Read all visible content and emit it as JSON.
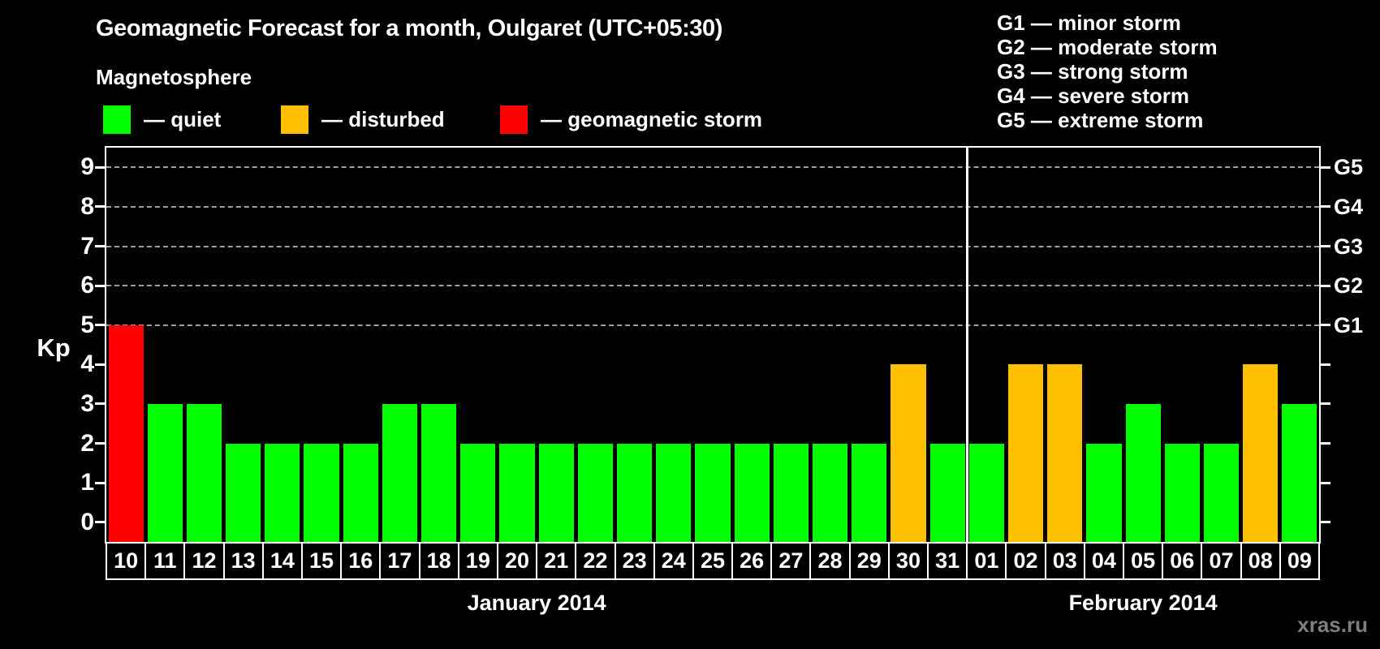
{
  "title": "Geomagnetic Forecast for a month, Oulgaret (UTC+05:30)",
  "magnetosphere_legend": {
    "title": "Magnetosphere",
    "items": [
      {
        "status": "quiet",
        "label": "— quiet"
      },
      {
        "status": "disturbed",
        "label": "— disturbed"
      },
      {
        "status": "storm",
        "label": "— geomagnetic storm"
      }
    ]
  },
  "storm_scale_legend": [
    "G1 — minor storm",
    "G2 — moderate storm",
    "G3 — strong storm",
    "G4 — severe storm",
    "G5 — extreme storm"
  ],
  "watermark": "xras.ru",
  "colors": {
    "quiet": "#00ff00",
    "disturbed": "#ffc000",
    "storm": "#ff0000",
    "background": "#000000",
    "axis": "#ffffff",
    "grid": "#a0a0a0",
    "watermark": "#7f7f7f"
  },
  "chart_data": {
    "type": "bar",
    "title": "Geomagnetic Forecast for a month, Oulgaret (UTC+05:30)",
    "xlabel": "",
    "ylabel": "Kp",
    "ylim": [
      -0.5,
      9.5
    ],
    "yticks": [
      0,
      1,
      2,
      3,
      4,
      5,
      6,
      7,
      8,
      9
    ],
    "gridlines_at": [
      5,
      6,
      7,
      8,
      9
    ],
    "grid": "dashed-horizontal",
    "legend_position": "top-left",
    "right_axis": {
      "labels": [
        "G1",
        "G2",
        "G3",
        "G4",
        "G5"
      ],
      "values": [
        5,
        6,
        7,
        8,
        9
      ]
    },
    "months": [
      {
        "label": "January 2014",
        "days": [
          {
            "day": "10",
            "kp": 5,
            "status": "storm"
          },
          {
            "day": "11",
            "kp": 3,
            "status": "quiet"
          },
          {
            "day": "12",
            "kp": 3,
            "status": "quiet"
          },
          {
            "day": "13",
            "kp": 2,
            "status": "quiet"
          },
          {
            "day": "14",
            "kp": 2,
            "status": "quiet"
          },
          {
            "day": "15",
            "kp": 2,
            "status": "quiet"
          },
          {
            "day": "16",
            "kp": 2,
            "status": "quiet"
          },
          {
            "day": "17",
            "kp": 3,
            "status": "quiet"
          },
          {
            "day": "18",
            "kp": 3,
            "status": "quiet"
          },
          {
            "day": "19",
            "kp": 2,
            "status": "quiet"
          },
          {
            "day": "20",
            "kp": 2,
            "status": "quiet"
          },
          {
            "day": "21",
            "kp": 2,
            "status": "quiet"
          },
          {
            "day": "22",
            "kp": 2,
            "status": "quiet"
          },
          {
            "day": "23",
            "kp": 2,
            "status": "quiet"
          },
          {
            "day": "24",
            "kp": 2,
            "status": "quiet"
          },
          {
            "day": "25",
            "kp": 2,
            "status": "quiet"
          },
          {
            "day": "26",
            "kp": 2,
            "status": "quiet"
          },
          {
            "day": "27",
            "kp": 2,
            "status": "quiet"
          },
          {
            "day": "28",
            "kp": 2,
            "status": "quiet"
          },
          {
            "day": "29",
            "kp": 2,
            "status": "quiet"
          },
          {
            "day": "30",
            "kp": 4,
            "status": "disturbed"
          },
          {
            "day": "31",
            "kp": 2,
            "status": "quiet"
          }
        ]
      },
      {
        "label": "February 2014",
        "days": [
          {
            "day": "01",
            "kp": 2,
            "status": "quiet"
          },
          {
            "day": "02",
            "kp": 4,
            "status": "disturbed"
          },
          {
            "day": "03",
            "kp": 4,
            "status": "disturbed"
          },
          {
            "day": "04",
            "kp": 2,
            "status": "quiet"
          },
          {
            "day": "05",
            "kp": 3,
            "status": "quiet"
          },
          {
            "day": "06",
            "kp": 2,
            "status": "quiet"
          },
          {
            "day": "07",
            "kp": 2,
            "status": "quiet"
          },
          {
            "day": "08",
            "kp": 4,
            "status": "disturbed"
          },
          {
            "day": "09",
            "kp": 3,
            "status": "quiet"
          }
        ]
      }
    ]
  }
}
